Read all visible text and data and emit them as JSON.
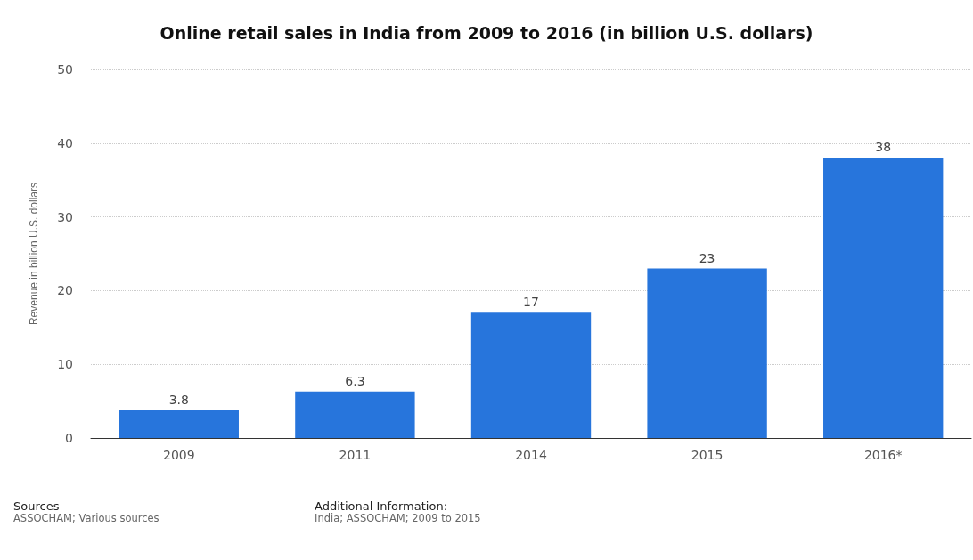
{
  "chart_data": {
    "type": "bar",
    "title": "Online retail sales in India from 2009 to 2016 (in billion U.S. dollars)",
    "ylabel": "Revenue in billion U.S. dollars",
    "categories": [
      "2009",
      "2011",
      "2014",
      "2015",
      "2016*"
    ],
    "values": [
      3.8,
      6.3,
      17,
      23,
      38
    ],
    "color": "#2775dc",
    "ylim": [
      0,
      50
    ],
    "yticks": [
      0,
      10,
      20,
      30,
      40,
      50
    ],
    "grid": "y",
    "data_labels": true,
    "annotations": [
      "Sources",
      "ASSOCHAM; Various sources",
      "Additional Information:",
      "India; ASSOCHAM; 2009 to 2015"
    ]
  }
}
